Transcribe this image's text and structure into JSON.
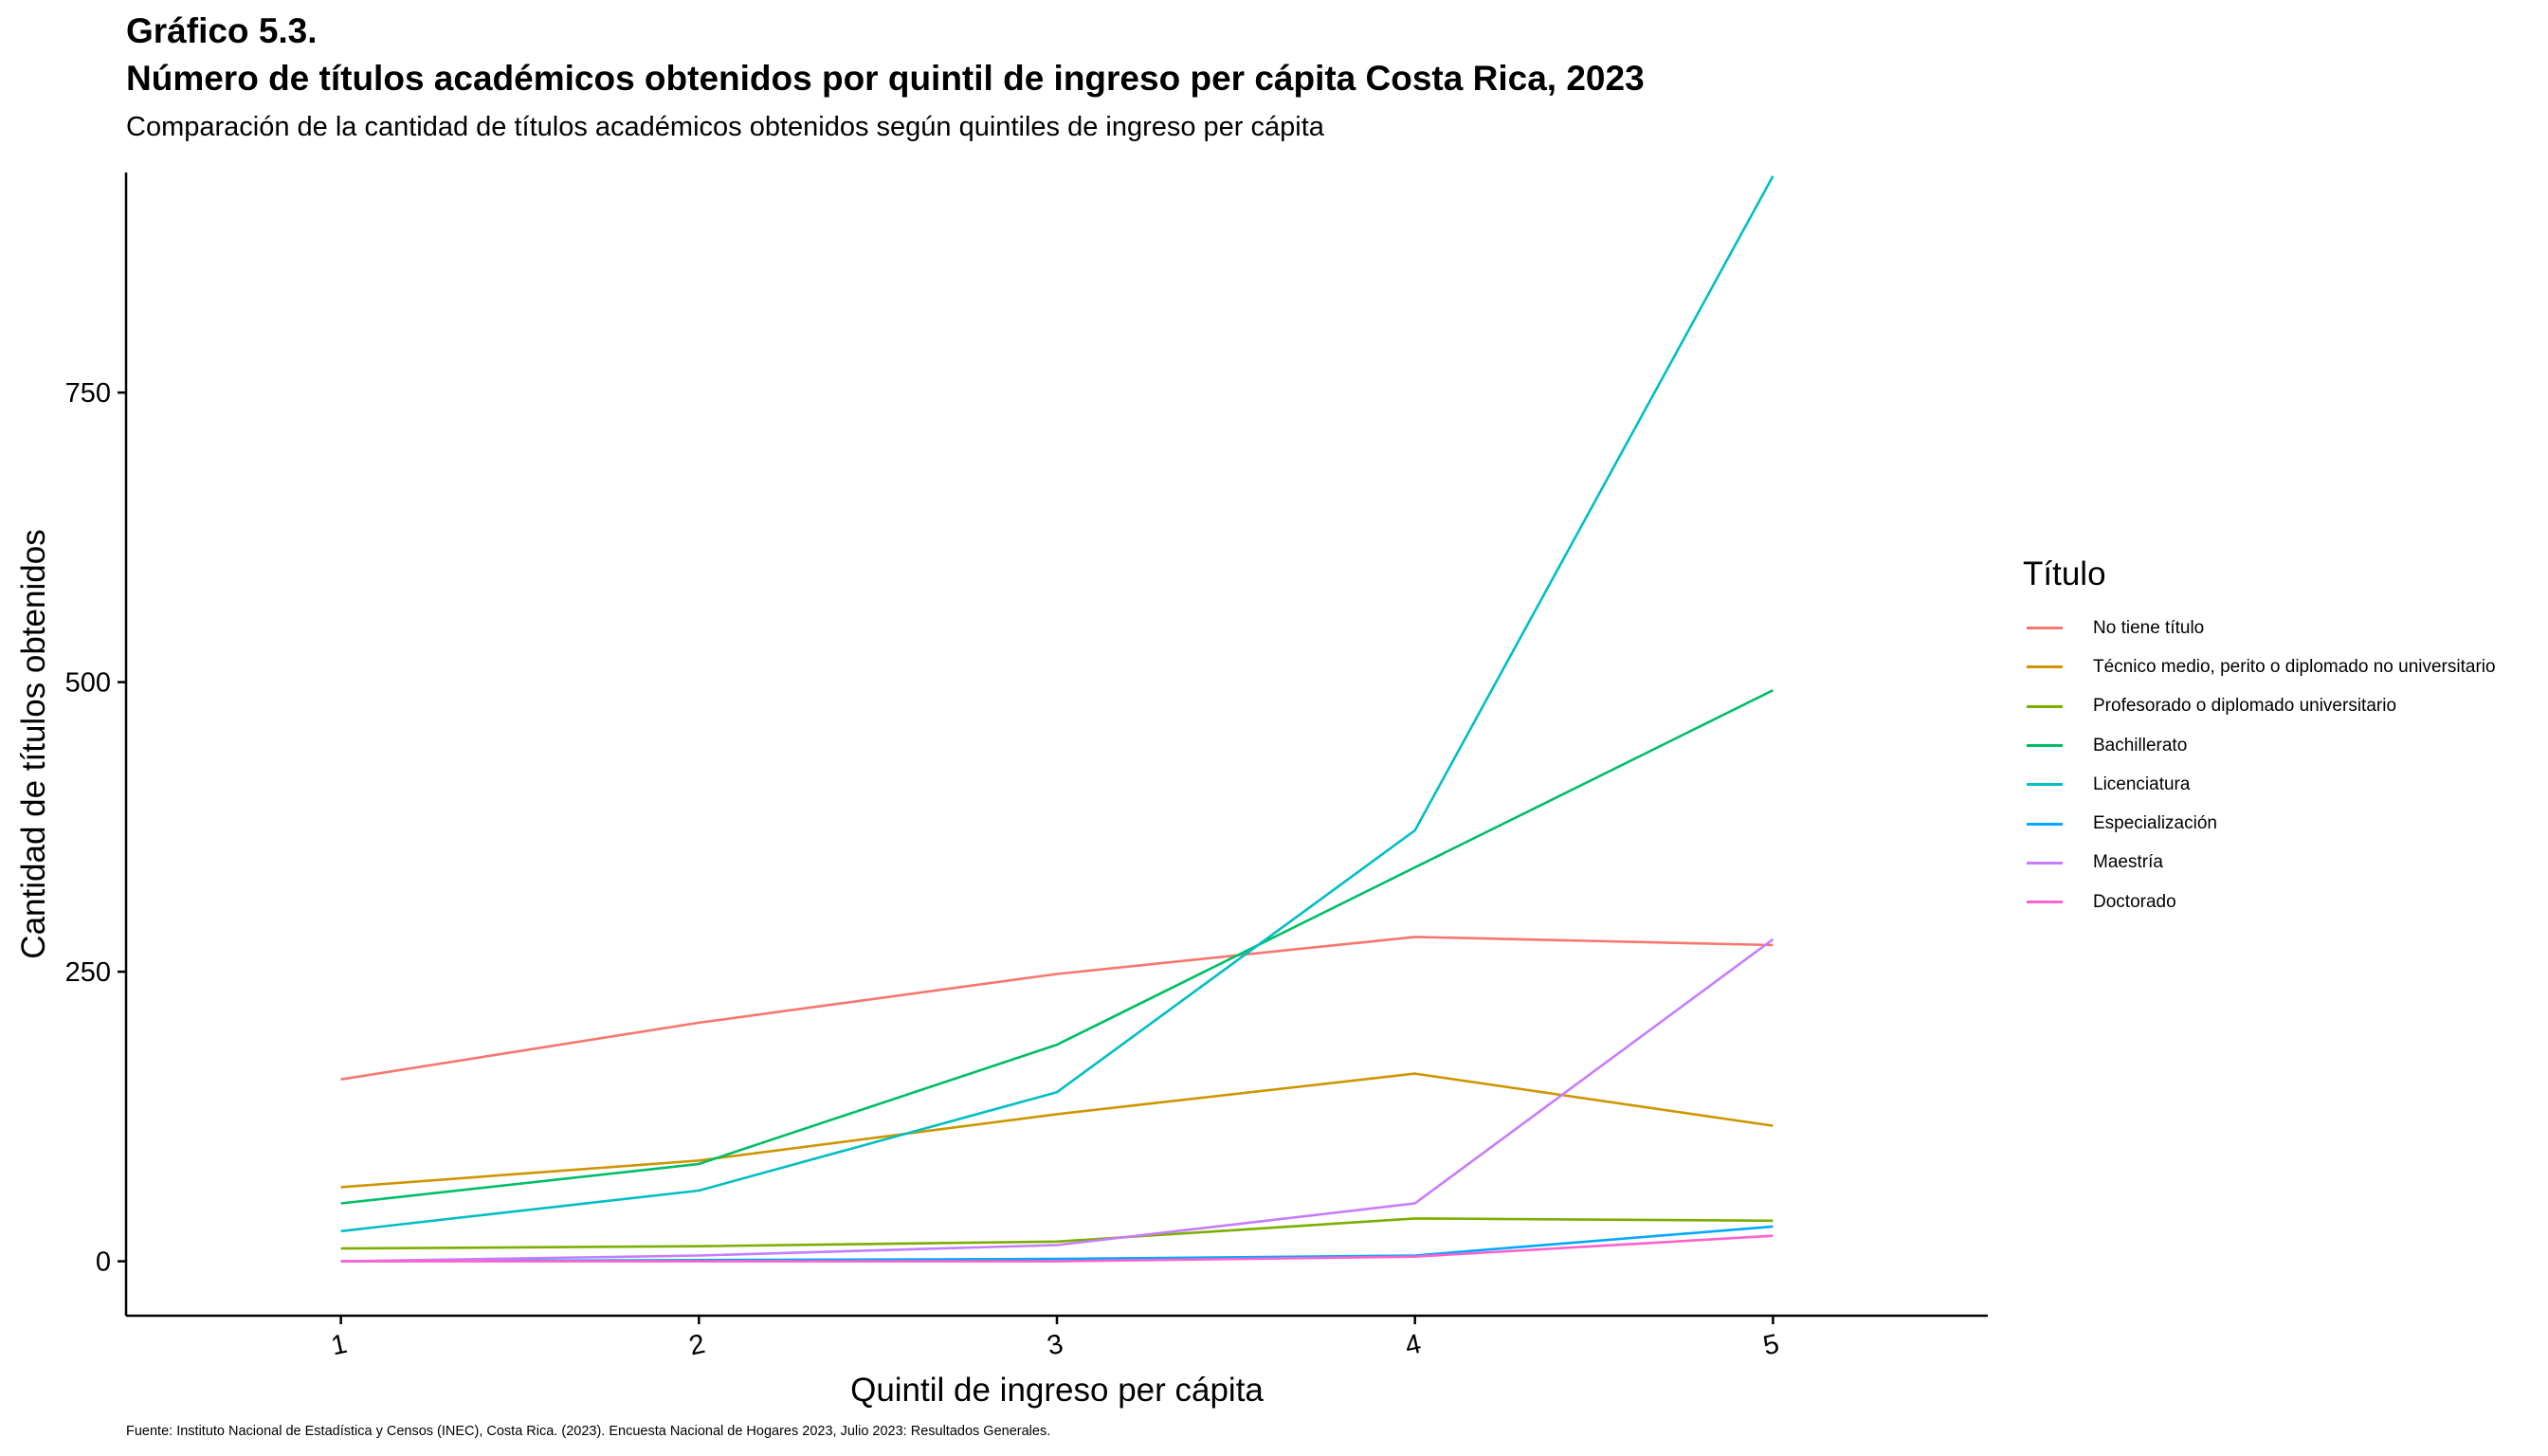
{
  "title": [
    "Gráfico 5.3.",
    "Número de títulos académicos obtenidos por quintil de ingreso per cápita Costa Rica, 2023"
  ],
  "subtitle": "Comparación de la cantidad de títulos académicos obtenidos según quintiles de ingreso per cápita",
  "caption": "Fuente: Instituto Nacional de Estadística y Censos (INEC), Costa Rica. (2023). Encuesta Nacional de Hogares 2023, Julio 2023: Resultados Generales.",
  "legend": {
    "title": "Título",
    "placement": "right"
  },
  "chart_data": {
    "type": "line",
    "title": "Número de títulos académicos obtenidos por quintil de ingreso per cápita Costa Rica, 2023",
    "xlabel": "Quintil de ingreso per cápita",
    "ylabel": "Cantidad de títulos obtenidos",
    "x": [
      1,
      2,
      3,
      4,
      5
    ],
    "x_ticks": [
      "1",
      "2",
      "3",
      "4",
      "5"
    ],
    "y_ticks": [
      0,
      250,
      500,
      750
    ],
    "xlim": [
      0.4,
      5.6
    ],
    "ylim": [
      -47,
      940
    ],
    "grid": false,
    "series": [
      {
        "name": "No tiene título",
        "color": "#F8766D",
        "values": [
          157,
          206,
          248,
          280,
          273
        ]
      },
      {
        "name": "Técnico medio, perito o diplomado no universitario",
        "color": "#CD9600",
        "values": [
          64,
          87,
          127,
          162,
          117
        ]
      },
      {
        "name": "Profesorado o diplomado universitario",
        "color": "#7CAE00",
        "values": [
          11,
          13,
          17,
          37,
          35
        ]
      },
      {
        "name": "Bachillerato",
        "color": "#00BE67",
        "values": [
          50,
          84,
          187,
          340,
          493
        ]
      },
      {
        "name": "Licenciatura",
        "color": "#00BFC4",
        "values": [
          26,
          61,
          146,
          372,
          937
        ]
      },
      {
        "name": "Especialización",
        "color": "#00A9FF",
        "values": [
          0,
          1,
          2,
          5,
          30
        ]
      },
      {
        "name": "Maestría",
        "color": "#C77CFF",
        "values": [
          0,
          5,
          14,
          50,
          278
        ]
      },
      {
        "name": "Doctorado",
        "color": "#FF61CC",
        "values": [
          0,
          0,
          0,
          4,
          22
        ]
      }
    ]
  }
}
